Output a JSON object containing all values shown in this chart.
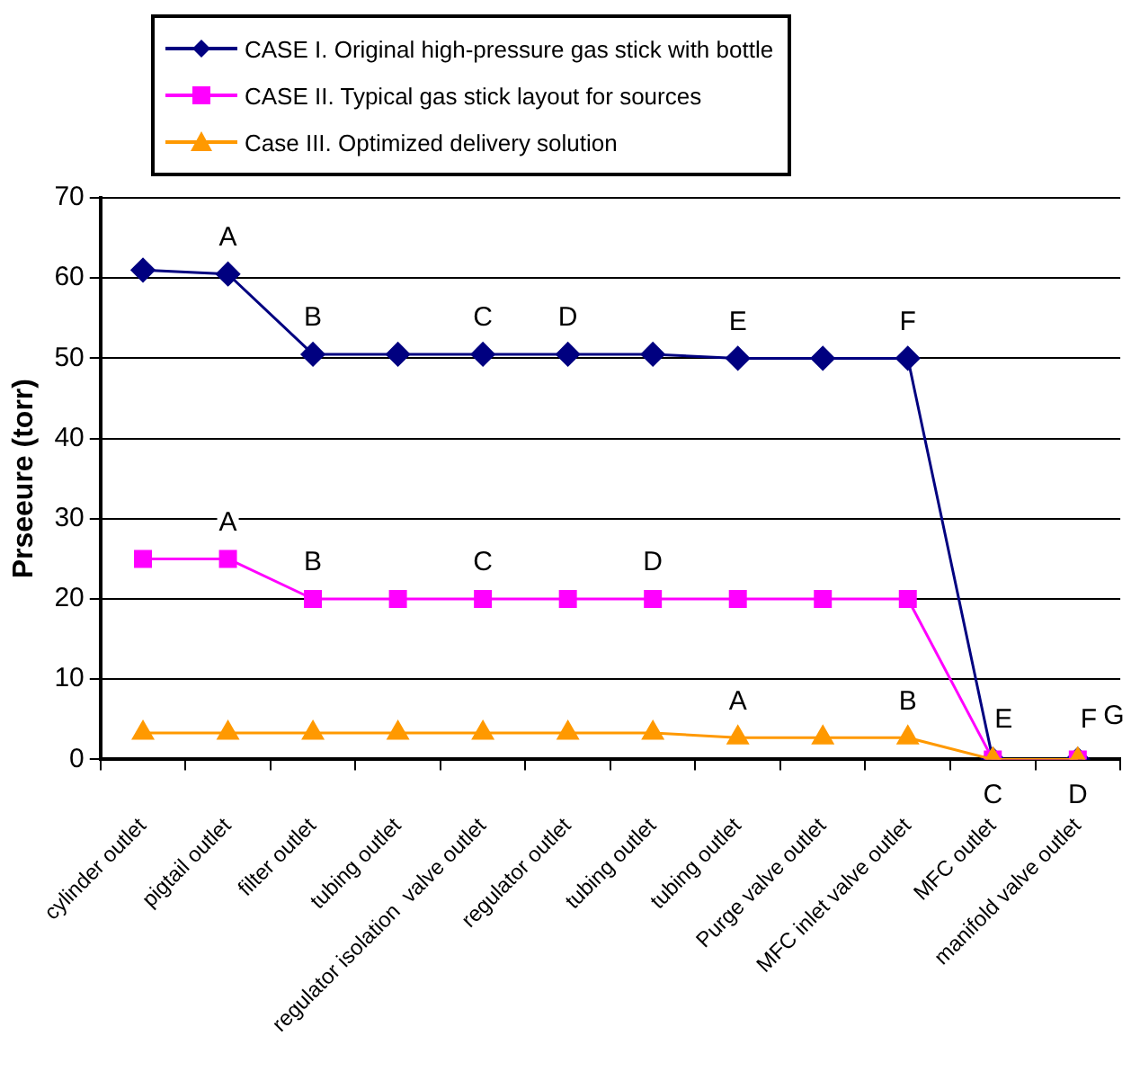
{
  "chart_data": {
    "type": "line",
    "ylabel": "Prseeure (torr)",
    "categories": [
      "cylinder outlet",
      "pigtail outlet",
      "filter outlet",
      "tubing outlet",
      "regulator isolation  valve outlet",
      "regulator outlet",
      "tubing outlet",
      "tubing outlet",
      "Purge valve outlet",
      "MFC inlet valve outlet",
      "MFC outlet",
      "manifold valve outlet"
    ],
    "series": [
      {
        "name": "CASE I. Original high-pressure gas stick with bottle",
        "color": "#000080",
        "marker": "diamond",
        "values": [
          61,
          60.5,
          50.5,
          50.5,
          50.5,
          50.5,
          50.5,
          50,
          50,
          50,
          0,
          0
        ],
        "value_labels": [
          null,
          "A",
          "B",
          null,
          "C",
          "D",
          null,
          "E",
          null,
          "F",
          null,
          "G"
        ]
      },
      {
        "name": "CASE II. Typical gas stick layout for sources",
        "color": "#ff00ff",
        "marker": "square",
        "values": [
          25,
          25,
          20,
          20,
          20,
          20,
          20,
          20,
          20,
          20,
          0,
          0
        ],
        "value_labels": [
          null,
          "A",
          "B",
          null,
          "C",
          null,
          "D",
          null,
          null,
          null,
          "E",
          "F"
        ]
      },
      {
        "name": "Case III. Optimized delivery solution",
        "color": "#ff9900",
        "marker": "triangle",
        "values": [
          3.3,
          3.3,
          3.3,
          3.3,
          3.3,
          3.3,
          3.3,
          2.7,
          2.7,
          2.7,
          0,
          0
        ],
        "value_labels": [
          null,
          null,
          null,
          null,
          null,
          null,
          null,
          "A",
          null,
          "B",
          "C",
          "D"
        ]
      }
    ],
    "ylim": [
      0,
      70
    ],
    "yticks": [
      0,
      10,
      20,
      30,
      40,
      50,
      60,
      70
    ],
    "grid": "y",
    "legend": "top"
  }
}
